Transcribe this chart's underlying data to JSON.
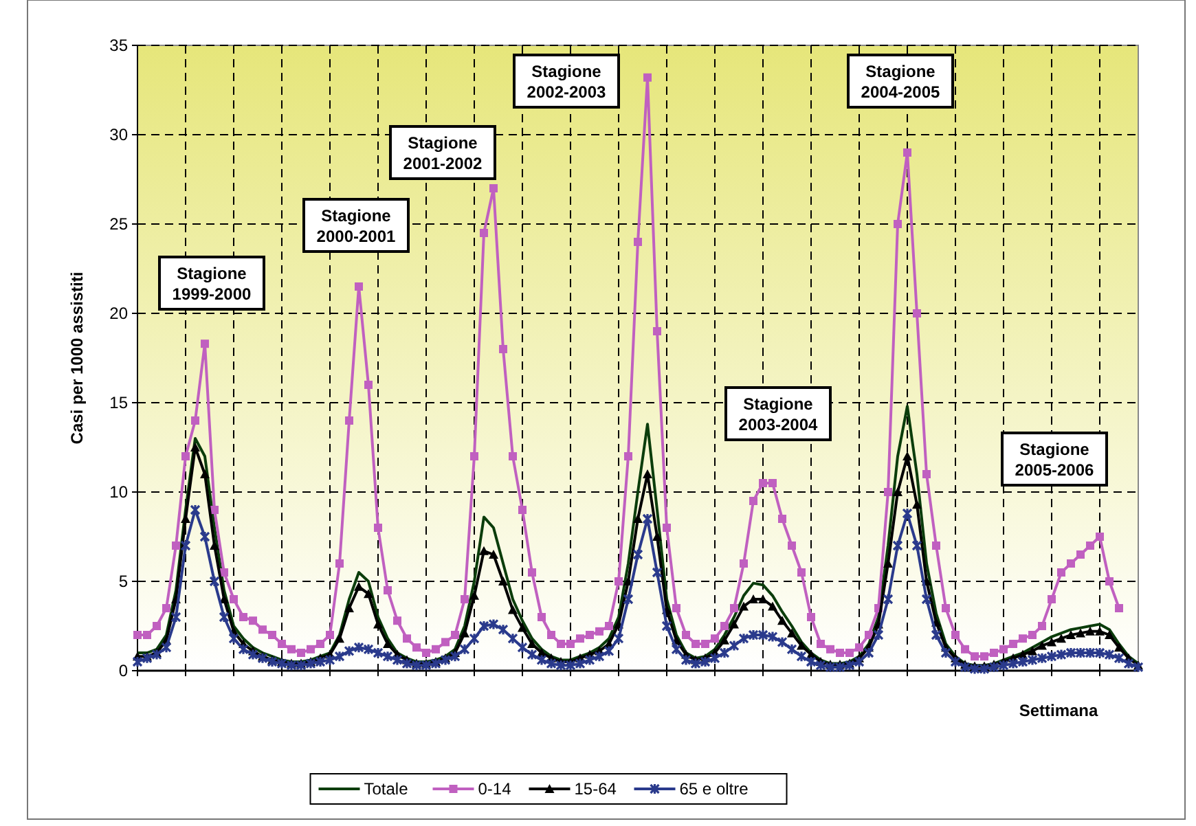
{
  "chart_data": {
    "type": "line",
    "xlabel": "Settimana",
    "ylabel": "Casi per 1000 assistiti",
    "ylim": [
      0,
      35
    ],
    "yticks": [
      0,
      5,
      10,
      15,
      20,
      25,
      30,
      35
    ],
    "grid": true,
    "legend": "bottom",
    "categories": [
      null,
      null,
      null,
      null,
      null,
      null,
      null,
      null,
      null,
      null,
      null,
      null,
      null,
      null,
      null,
      null,
      null,
      null,
      null,
      null,
      null,
      null,
      null,
      null,
      null,
      null,
      null,
      null,
      null,
      null,
      null,
      null,
      null,
      null,
      null,
      null,
      null,
      null,
      null,
      null,
      null,
      null,
      null,
      null,
      null,
      null,
      null,
      null,
      null,
      null,
      null,
      null,
      null,
      null,
      null,
      null,
      null,
      null,
      null,
      null,
      null,
      null,
      null,
      null,
      null,
      null,
      null,
      null,
      null,
      null,
      null,
      null,
      null,
      null,
      null,
      null,
      null,
      null,
      null,
      null,
      null,
      null,
      null,
      null,
      null,
      null,
      null,
      null,
      null,
      null,
      null,
      null,
      null,
      null,
      null,
      null,
      null,
      null,
      null,
      null,
      null,
      null,
      null,
      null,
      null
    ],
    "series": [
      {
        "name": "Totale",
        "color": "#0b3d0b",
        "marker": "none",
        "values": [
          1,
          1,
          1.2,
          2,
          4.5,
          9,
          13,
          12,
          8,
          4.5,
          2.5,
          1.8,
          1.3,
          1,
          0.8,
          0.6,
          0.5,
          0.5,
          0.6,
          0.8,
          1,
          2,
          4,
          5.5,
          5,
          3,
          1.8,
          1,
          0.7,
          0.5,
          0.5,
          0.6,
          0.8,
          1.2,
          2.5,
          5,
          8.6,
          8,
          6,
          4,
          2.8,
          1.8,
          1.2,
          0.8,
          0.6,
          0.6,
          0.8,
          1,
          1.3,
          1.8,
          3,
          6,
          10,
          13.8,
          9,
          4,
          2,
          1,
          0.7,
          0.8,
          1.2,
          2,
          3,
          4.2,
          4.9,
          4.8,
          4.2,
          3.3,
          2.5,
          1.6,
          1,
          0.6,
          0.4,
          0.4,
          0.5,
          0.8,
          1.5,
          3,
          7,
          12,
          14.8,
          11,
          6,
          3.2,
          1.5,
          0.8,
          0.4,
          0.3,
          0.3,
          0.4,
          0.6,
          0.8,
          1,
          1.3,
          1.6,
          1.9,
          2.1,
          2.3,
          2.4,
          2.5,
          2.6,
          2.3,
          1.5,
          0.8,
          0.4
        ]
      },
      {
        "name": "0-14",
        "color": "#c060c0",
        "marker": "square",
        "values": [
          2,
          2,
          2.5,
          3.5,
          7,
          12,
          14,
          18.3,
          9,
          5.5,
          4,
          3,
          2.8,
          2.3,
          2,
          1.5,
          1.2,
          1,
          1.2,
          1.5,
          2,
          6,
          14,
          21.5,
          16,
          8,
          4.5,
          2.8,
          1.8,
          1.3,
          1,
          1.2,
          1.6,
          2,
          4,
          12,
          24.5,
          27,
          18,
          12,
          9,
          5.5,
          3,
          2,
          1.5,
          1.5,
          1.8,
          2,
          2.2,
          2.5,
          5,
          12,
          24,
          33.2,
          19,
          8,
          3.5,
          2,
          1.5,
          1.5,
          1.8,
          2.5,
          3.5,
          6,
          9.5,
          10.5,
          10.5,
          8.5,
          7,
          5.5,
          3,
          1.5,
          1.2,
          1,
          1,
          1.3,
          2,
          3.5,
          10,
          25,
          29,
          20,
          11,
          7,
          3.5,
          2,
          1.2,
          0.8,
          0.8,
          1,
          1.2,
          1.5,
          1.8,
          2,
          2.5,
          4,
          5.5,
          6,
          6.5,
          7,
          7.5,
          5,
          3.5,
          null,
          null
        ]
      },
      {
        "name": "15-64",
        "color": "#000000",
        "marker": "triangle",
        "values": [
          0.8,
          0.8,
          1,
          1.7,
          4,
          8.5,
          12.5,
          11,
          7,
          4,
          2.2,
          1.5,
          1.1,
          0.8,
          0.6,
          0.5,
          0.4,
          0.4,
          0.5,
          0.7,
          0.9,
          1.8,
          3.5,
          4.7,
          4.3,
          2.6,
          1.5,
          0.9,
          0.6,
          0.4,
          0.4,
          0.5,
          0.7,
          1,
          2.1,
          4.2,
          6.7,
          6.5,
          5,
          3.4,
          2.4,
          1.5,
          1,
          0.7,
          0.5,
          0.5,
          0.7,
          0.9,
          1.1,
          1.5,
          2.6,
          5,
          8.5,
          11,
          7.5,
          3.4,
          1.7,
          0.9,
          0.6,
          0.7,
          1,
          1.7,
          2.6,
          3.6,
          4,
          4,
          3.6,
          2.8,
          2.1,
          1.4,
          0.9,
          0.5,
          0.35,
          0.35,
          0.4,
          0.7,
          1.3,
          2.6,
          6,
          10,
          12,
          9.3,
          5,
          2.7,
          1.3,
          0.7,
          0.35,
          0.25,
          0.25,
          0.35,
          0.5,
          0.7,
          0.9,
          1.1,
          1.4,
          1.6,
          1.8,
          2,
          2.1,
          2.2,
          2.2,
          2,
          1.3,
          0.7,
          0.3
        ]
      },
      {
        "name": "65 e oltre",
        "color": "#2a3a8c",
        "marker": "cross",
        "values": [
          0.5,
          0.7,
          0.9,
          1.3,
          3,
          7,
          9,
          7.5,
          5,
          3,
          1.8,
          1.2,
          0.9,
          0.7,
          0.5,
          0.4,
          0.3,
          0.3,
          0.4,
          0.5,
          0.6,
          0.8,
          1.1,
          1.3,
          1.2,
          1,
          0.8,
          0.6,
          0.4,
          0.3,
          0.3,
          0.4,
          0.6,
          0.8,
          1.2,
          1.8,
          2.5,
          2.6,
          2.3,
          1.8,
          1.3,
          0.9,
          0.6,
          0.4,
          0.3,
          0.3,
          0.4,
          0.6,
          0.8,
          1.1,
          1.8,
          4,
          6.5,
          8.5,
          5.5,
          2.5,
          1.2,
          0.6,
          0.4,
          0.5,
          0.7,
          1,
          1.4,
          1.8,
          2,
          2,
          1.9,
          1.6,
          1.2,
          0.8,
          0.5,
          0.3,
          0.2,
          0.2,
          0.3,
          0.5,
          1,
          2,
          4,
          7,
          8.8,
          7,
          4,
          2,
          1,
          0.5,
          0.2,
          0.1,
          0.1,
          0.2,
          0.3,
          0.4,
          0.5,
          0.6,
          0.7,
          0.8,
          0.9,
          1,
          1,
          1,
          1,
          0.9,
          0.7,
          0.4,
          0.2
        ]
      }
    ],
    "annotations": [
      "Stagione\n1999-2000",
      "Stagione\n2000-2001",
      "Stagione\n2001-2002",
      "Stagione\n2002-2003",
      "Stagione\n2003-2004",
      "Stagione\n2004-2005",
      "Stagione\n2005-2006"
    ]
  }
}
